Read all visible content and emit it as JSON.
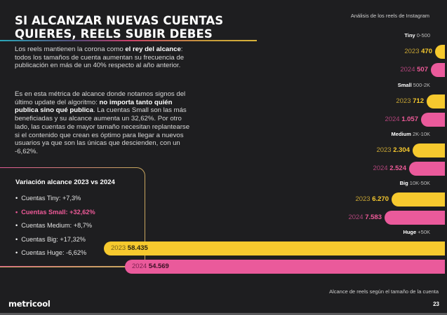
{
  "header": {
    "title": "SI ALCANZAR NUEVAS CUENTAS QUIERES, REELS SUBIR DEBES",
    "subtitle": "Análisis de los reels de Instagram"
  },
  "intro": {
    "p1_a": "Los reels mantienen la corona como ",
    "p1_b": "el rey del alcance",
    "p1_c": ": todos los tamaños de cuenta aumentan su frecuencia de publicación en más de un 40% respecto al año anterior.",
    "p2_a": "Es en esta métrica de alcance donde notamos signos del último update del algoritmo: ",
    "p2_b": "no importa tanto quién publica sino qué publica",
    "p2_c": ". La cuentas Small son las más beneficiadas y su alcance aumenta un 32,62%. Por otro lado, las cuentas de mayor tamaño necesitan replantearse si el contenido que crean es óptimo para llegar a nuevos usuarios ya que son las únicas que descienden, con un -6,62%."
  },
  "variation_box": {
    "title": "Variación alcance 2023 vs 2024",
    "items": [
      {
        "label": "Cuentas Tiny: +7,3%",
        "highlight": false
      },
      {
        "label": "Cuentas Small: +32,62%",
        "highlight": true
      },
      {
        "label": "Cuentas Medium: +8,7%",
        "highlight": false
      },
      {
        "label": "Cuentas Big: +17,32%",
        "highlight": false
      },
      {
        "label": "Cuentas Huge: -6,62%",
        "highlight": false
      }
    ]
  },
  "chart_data": {
    "type": "bar",
    "orientation": "horizontal",
    "title": "Análisis de los reels de Instagram",
    "caption": "Alcance de reels según el tamaño de la cuenta",
    "categories": [
      {
        "name": "Tiny",
        "range": "0-500"
      },
      {
        "name": "Small",
        "range": "500-2K"
      },
      {
        "name": "Medium",
        "range": "2K-10K"
      },
      {
        "name": "Big",
        "range": "10K-50K"
      },
      {
        "name": "Huge",
        "range": "+50K"
      }
    ],
    "series": [
      {
        "name": "2023",
        "color": "#f6c92e",
        "values": [
          470,
          712,
          2304,
          6270,
          58435
        ],
        "labels": [
          "470",
          "712",
          "2.304",
          "6.270",
          "58.435"
        ]
      },
      {
        "name": "2024",
        "color": "#ea5a9b",
        "values": [
          507,
          1057,
          2524,
          7583,
          54569
        ],
        "labels": [
          "507",
          "1.057",
          "2.524",
          "7.583",
          "54.569"
        ]
      }
    ],
    "axis_scale": "non-linear (bars grow from right edge)",
    "grid": false,
    "legend": "none"
  },
  "footer": {
    "logo": "metricool",
    "caption": "Alcance de reels según el tamaño de la cuenta",
    "page_number": "23"
  }
}
